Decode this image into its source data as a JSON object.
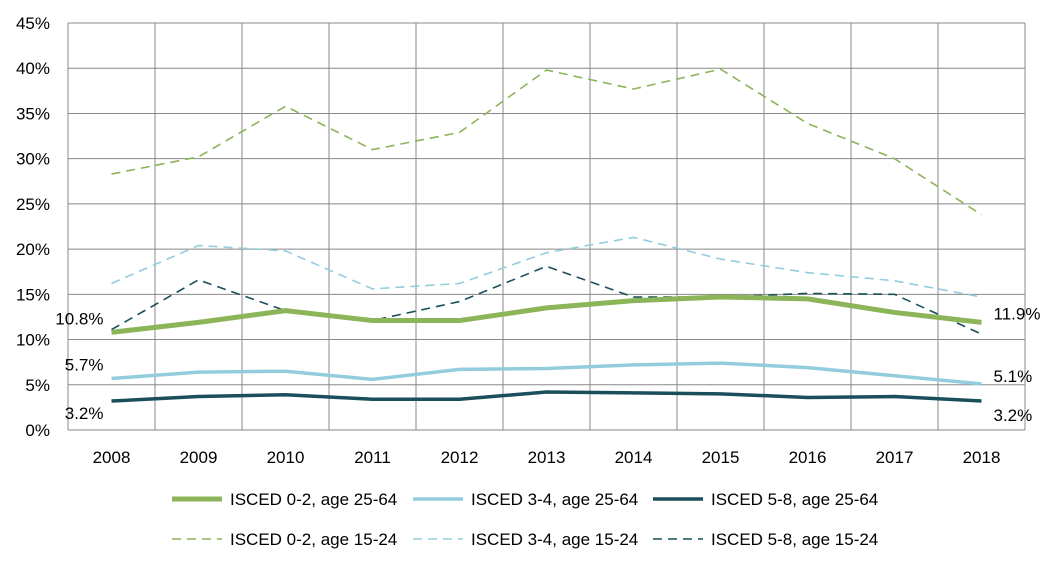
{
  "chart_data": {
    "type": "line",
    "title": "",
    "xlabel": "",
    "ylabel": "",
    "categories": [
      "2008",
      "2009",
      "2010",
      "2011",
      "2012",
      "2013",
      "2014",
      "2015",
      "2016",
      "2017",
      "2018"
    ],
    "ylim": [
      0,
      45
    ],
    "y_ticks": [
      "0%",
      "5%",
      "10%",
      "15%",
      "20%",
      "25%",
      "30%",
      "35%",
      "40%",
      "45%"
    ],
    "grid": true,
    "legend_position": "bottom",
    "series": [
      {
        "name": "ISCED 0-2, age 25-64",
        "color": "#8cb458",
        "style": "solid",
        "values": [
          10.8,
          11.9,
          13.2,
          12.1,
          12.1,
          13.5,
          14.3,
          14.7,
          14.5,
          13.0,
          11.9
        ]
      },
      {
        "name": "ISCED 3-4, age 25-64",
        "color": "#93cddd",
        "style": "solid",
        "values": [
          5.7,
          6.4,
          6.5,
          5.6,
          6.7,
          6.8,
          7.2,
          7.4,
          6.9,
          6.0,
          5.1
        ]
      },
      {
        "name": "ISCED 5-8, age 25-64",
        "color": "#1b4e5b",
        "style": "solid",
        "values": [
          3.2,
          3.7,
          3.9,
          3.4,
          3.4,
          4.2,
          4.1,
          4.0,
          3.6,
          3.7,
          3.2
        ]
      },
      {
        "name": "ISCED 0-2, age 15-24",
        "color": "#8cb458",
        "style": "dashed",
        "values": [
          28.3,
          30.2,
          35.8,
          31.0,
          32.9,
          39.8,
          37.7,
          39.9,
          33.9,
          30.0,
          23.8
        ]
      },
      {
        "name": "ISCED 3-4, age 15-24",
        "color": "#93cddd",
        "style": "dashed",
        "values": [
          16.2,
          20.4,
          19.8,
          15.6,
          16.2,
          19.6,
          21.3,
          18.9,
          17.4,
          16.5,
          14.7
        ]
      },
      {
        "name": "ISCED 5-8, age 15-24",
        "color": "#1b4e5b",
        "style": "dashed",
        "values": [
          11.1,
          16.6,
          13.2,
          12.1,
          14.2,
          18.1,
          14.7,
          14.7,
          15.1,
          15.0,
          10.6
        ]
      }
    ],
    "data_labels": [
      {
        "series": 0,
        "index": 0,
        "text": "10.8%"
      },
      {
        "series": 1,
        "index": 0,
        "text": "5.7%"
      },
      {
        "series": 2,
        "index": 0,
        "text": "3.2%"
      },
      {
        "series": 0,
        "index": 10,
        "text": "11.9%"
      },
      {
        "series": 1,
        "index": 10,
        "text": "5.1%"
      },
      {
        "series": 2,
        "index": 10,
        "text": "3.2%"
      }
    ]
  }
}
